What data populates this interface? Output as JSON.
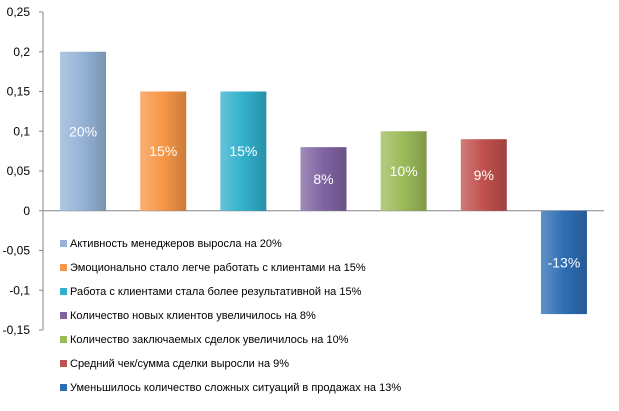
{
  "chart_data": {
    "type": "bar",
    "ylim": [
      -0.15,
      0.25
    ],
    "yticks": [
      -0.15,
      -0.1,
      -0.05,
      0,
      0.05,
      0.1,
      0.15,
      0.2,
      0.25
    ],
    "ytick_labels": [
      "-0,15",
      "-0,1",
      "-0,05",
      "0",
      "0,05",
      "0,1",
      "0,15",
      "0,2",
      "0,25"
    ],
    "grid": false,
    "legend_position": "bottom-left",
    "series": [
      {
        "name": "Активность  менеджеров  выросла на 20%",
        "value": 0.2,
        "label": "20%",
        "color": "#95b3d7"
      },
      {
        "name": "Эмоционально стало легче работать с клиентами на 15%",
        "value": 0.15,
        "label": "15%",
        "color": "#f79646"
      },
      {
        "name": "Работа с клиентами стала более результативной на 15%",
        "value": 0.15,
        "label": "15%",
        "color": "#31b0cc"
      },
      {
        "name": "Количество новых клиентов увеличилось на 8%",
        "value": 0.08,
        "label": "8%",
        "color": "#8064a2"
      },
      {
        "name": "Количество заключаемых сделок увеличилось на 10%",
        "value": 0.1,
        "label": "10%",
        "color": "#9bbb59"
      },
      {
        "name": "Средний чек/сумма сделки выросли на 9%",
        "value": 0.09,
        "label": "9%",
        "color": "#c0504d"
      },
      {
        "name": "Уменьшилось количество сложных ситуаций в продажах на 13%",
        "value": -0.13,
        "label": "-13%",
        "color": "#2e6db4"
      }
    ]
  }
}
